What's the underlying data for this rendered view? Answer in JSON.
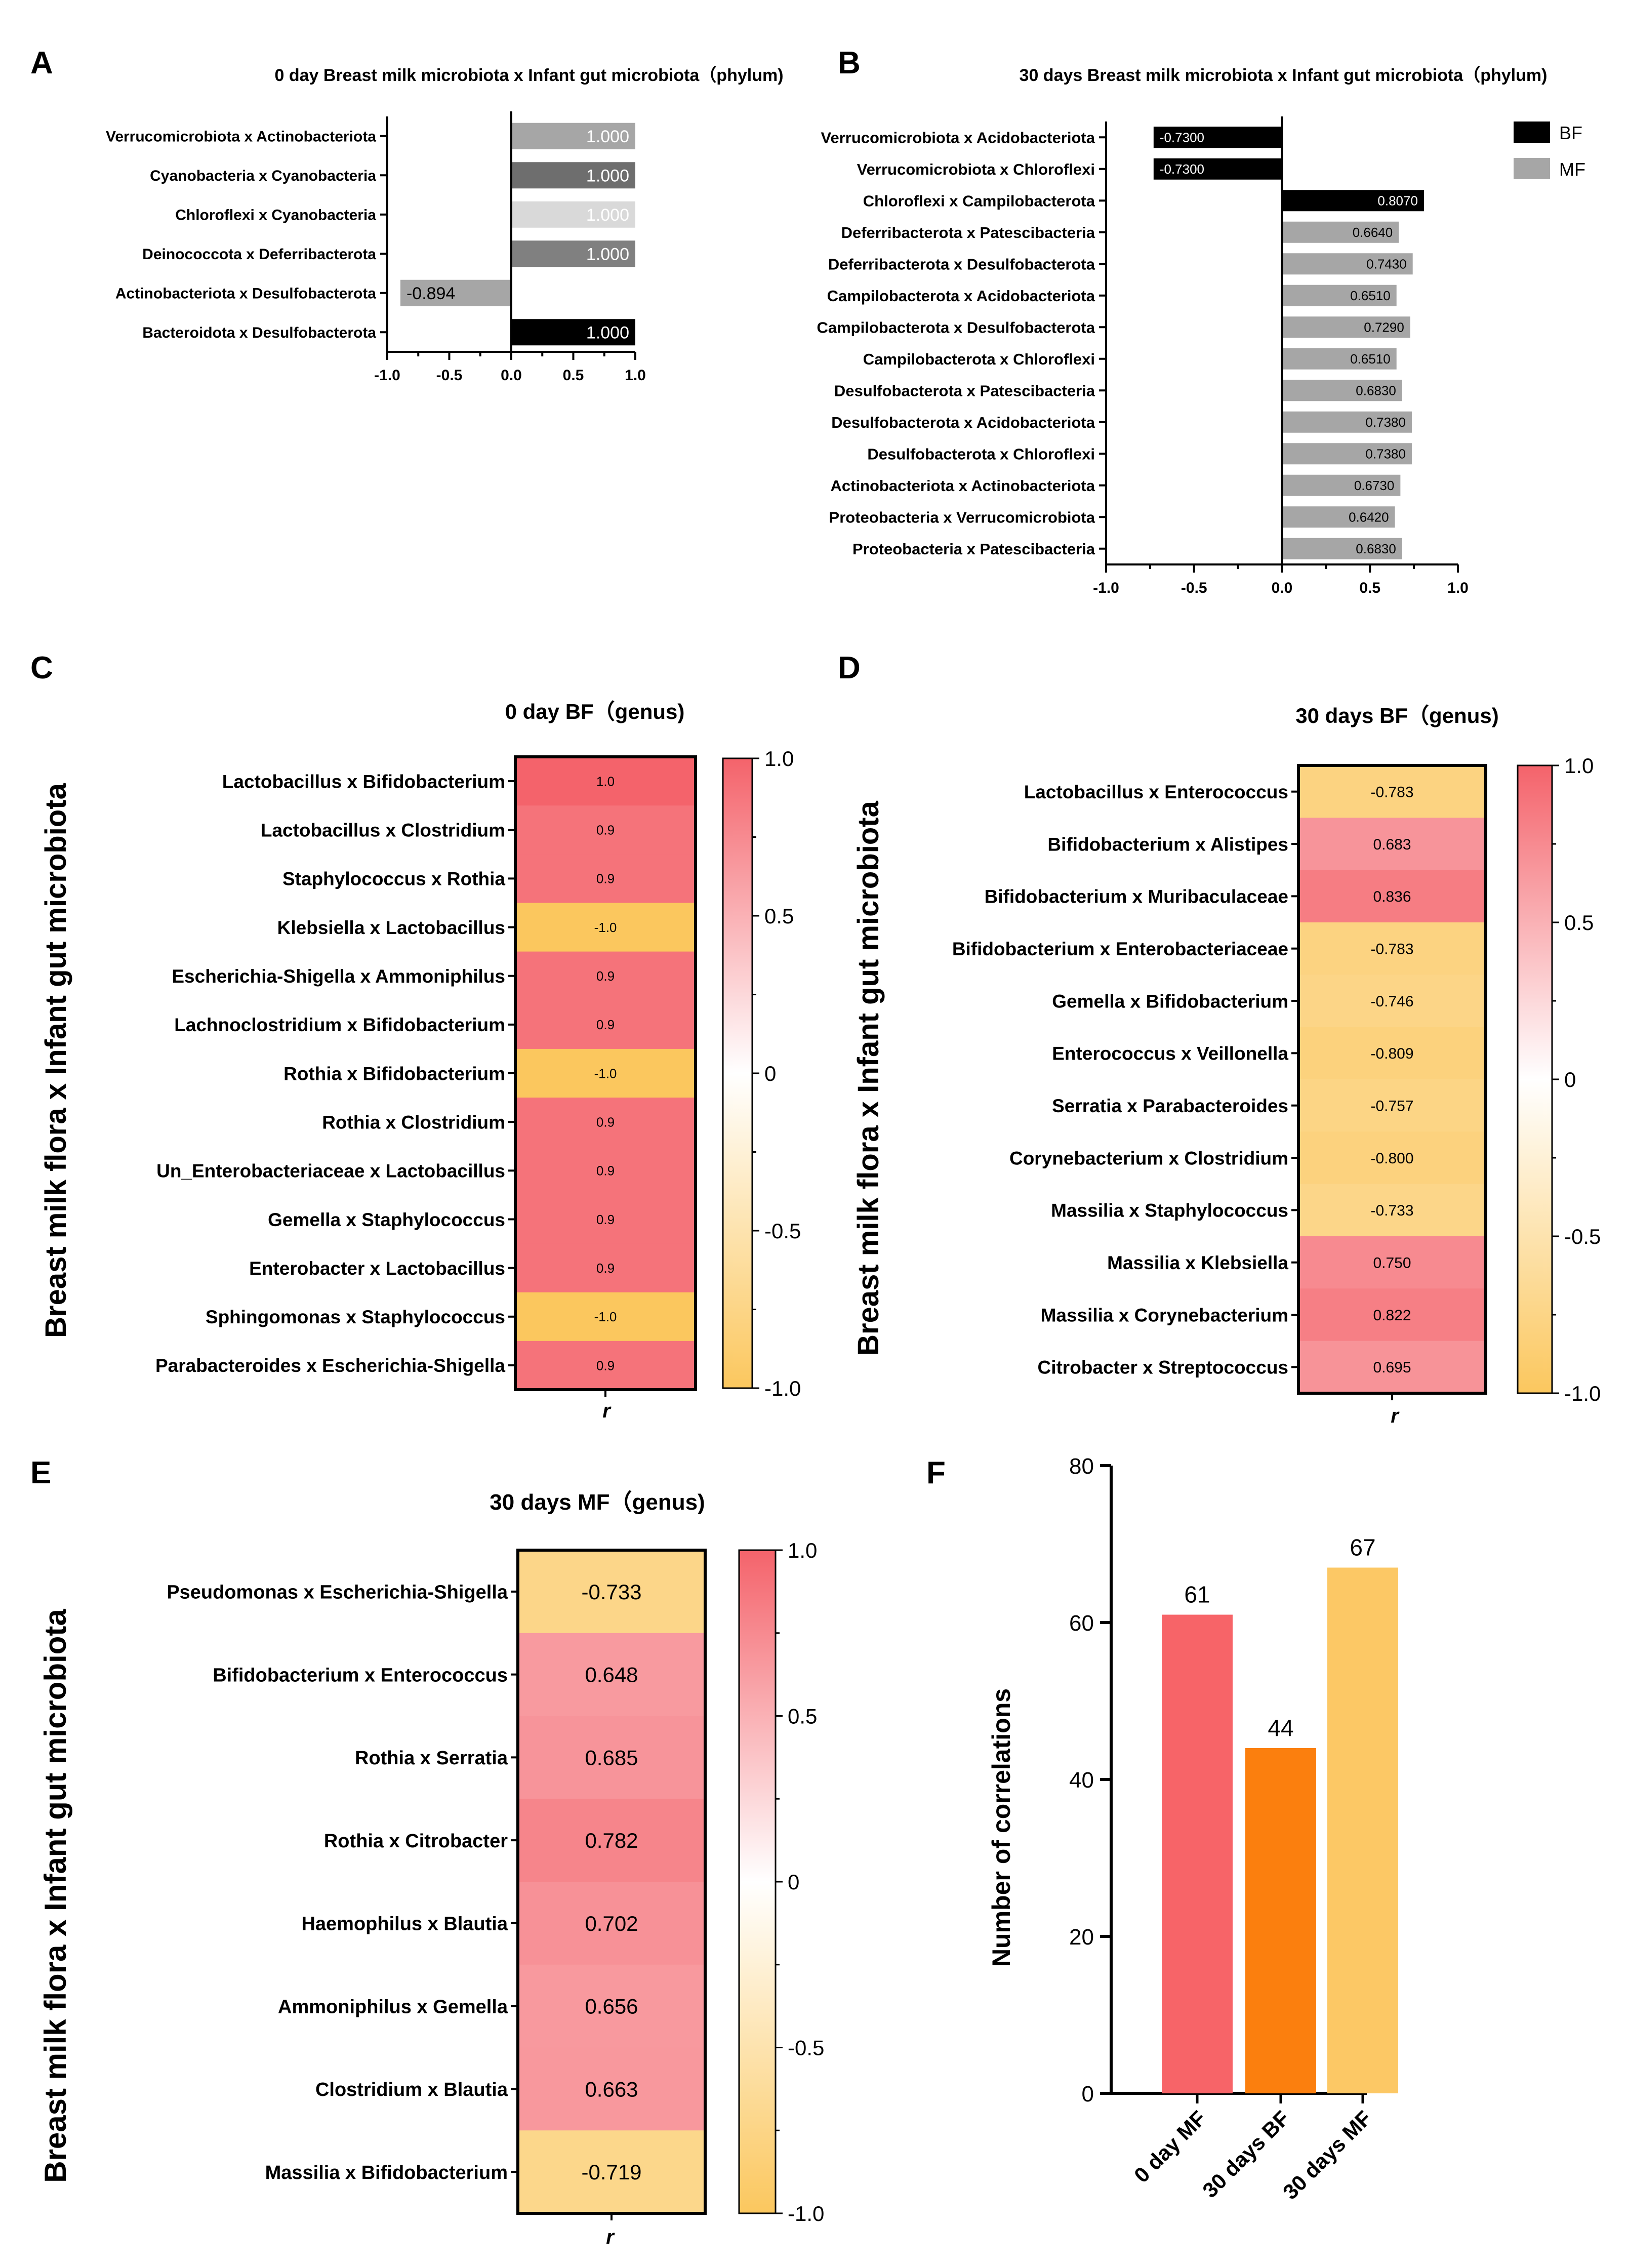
{
  "colors": {
    "bf": "#000000",
    "mf": "#a6a6a6",
    "heat_pos": "#f4636b",
    "heat_neg": "#fbc75e",
    "bar_f": [
      "#f76468",
      "#fb7f0e",
      "#fcc865"
    ]
  },
  "chart_data": [
    {
      "panel": "A",
      "type": "bar",
      "orientation": "horizontal",
      "title": "0 day Breast milk microbiota x Infant gut microbiota（phylum)",
      "xlim": [
        -1.0,
        1.0
      ],
      "ticks": [
        "-1.0",
        "-0.5",
        "0.0",
        "0.5",
        "1.0"
      ],
      "categories": [
        "Verrucomicrobiota x Actinobacteriota",
        "Cyanobacteria x Cyanobacteria",
        "Chloroflexi x Cyanobacteria",
        "Deinococcota x Deferribacterota",
        "Actinobacteriota x Desulfobacterota",
        "Bacteroidota x Desulfobacterota"
      ],
      "values": [
        1.0,
        1.0,
        1.0,
        1.0,
        -0.894,
        1.0
      ],
      "labels": [
        "1.000",
        "1.000",
        "1.000",
        "1.000",
        "-0.894",
        "1.000"
      ],
      "bar_colors": [
        "#a6a6a6",
        "#6e6e6e",
        "#d9d9d9",
        "#808080",
        "#a6a6a6",
        "#000000"
      ],
      "label_colors": [
        "#ffffff",
        "#ffffff",
        "#ffffff",
        "#ffffff",
        "#000000",
        "#ffffff"
      ]
    },
    {
      "panel": "B",
      "type": "bar",
      "orientation": "horizontal",
      "title": "30 days Breast milk microbiota x Infant gut microbiota（phylum)",
      "xlim": [
        -1.0,
        1.0
      ],
      "ticks": [
        "-1.0",
        "-0.5",
        "0.0",
        "0.5",
        "1.0"
      ],
      "legend": [
        "BF",
        "MF"
      ],
      "categories": [
        "Verrucomicrobiota x Acidobacteriota",
        "Verrucomicrobiota x Chloroflexi",
        "Chloroflexi x Campilobacterota",
        "Deferribacterota x Patescibacteria",
        "Deferribacterota x Desulfobacterota",
        "Campilobacterota x Acidobacteriota",
        "Campilobacterota x Desulfobacterota",
        "Campilobacterota x Chloroflexi",
        "Desulfobacterota x Patescibacteria",
        "Desulfobacterota x Acidobacteriota",
        "Desulfobacterota x Chloroflexi",
        "Actinobacteriota x Actinobacteriota",
        "Proteobacteria x Verrucomicrobiota",
        "Proteobacteria x Patescibacteria"
      ],
      "values": [
        -0.73,
        -0.73,
        0.807,
        0.664,
        0.743,
        0.651,
        0.729,
        0.651,
        0.683,
        0.738,
        0.738,
        0.673,
        0.642,
        0.683
      ],
      "labels": [
        "-0.7300",
        "-0.7300",
        "0.8070",
        "0.6640",
        "0.7430",
        "0.6510",
        "0.7290",
        "0.6510",
        "0.6830",
        "0.7380",
        "0.7380",
        "0.6730",
        "0.6420",
        "0.6830"
      ],
      "groups": [
        "BF",
        "BF",
        "BF",
        "MF",
        "MF",
        "MF",
        "MF",
        "MF",
        "MF",
        "MF",
        "MF",
        "MF",
        "MF",
        "MF"
      ]
    },
    {
      "panel": "C",
      "type": "heatmap",
      "title": "0 day BF（genus)",
      "ylabel": "Breast milk flora x Infant gut microbiota",
      "xlabel": "r",
      "colorbar_range": [
        -1.0,
        1.0
      ],
      "colorbar_ticks": [
        "1.0",
        "0.5",
        "0",
        "-0.5",
        "-1.0"
      ],
      "rows": [
        "Lactobacillus x Bifidobacterium",
        "Lactobacillus x Clostridium",
        "Staphylococcus x Rothia",
        "Klebsiella x Lactobacillus",
        "Escherichia-Shigella x Ammoniphilus",
        "Lachnoclostridium x Bifidobacterium",
        "Rothia x Bifidobacterium",
        "Rothia x Clostridium",
        "Un_Enterobacteriaceae x Lactobacillus",
        "Gemella x Staphylococcus",
        "Enterobacter x Lactobacillus",
        "Sphingomonas x Staphylococcus",
        "Parabacteroides x Escherichia-Shigella"
      ],
      "values": [
        1.0,
        0.9,
        0.9,
        -1.0,
        0.9,
        0.9,
        -1.0,
        0.9,
        0.9,
        0.9,
        0.9,
        -1.0,
        0.9
      ],
      "labels": [
        "1.0",
        "0.9",
        "0.9",
        "-1.0",
        "0.9",
        "0.9",
        "-1.0",
        "0.9",
        "0.9",
        "0.9",
        "0.9",
        "-1.0",
        "0.9"
      ]
    },
    {
      "panel": "D",
      "type": "heatmap",
      "title": "30 days BF（genus)",
      "ylabel": "Breast milk flora x Infant gut microbiota",
      "xlabel": "r",
      "colorbar_range": [
        -1.0,
        1.0
      ],
      "colorbar_ticks": [
        "1.0",
        "0.5",
        "0",
        "-0.5",
        "-1.0"
      ],
      "rows": [
        "Lactobacillus x Enterococcus",
        "Bifidobacterium x Alistipes",
        "Bifidobacterium x Muribaculaceae",
        "Bifidobacterium x Enterobacteriaceae",
        "Gemella x Bifidobacterium",
        "Enterococcus x Veillonella",
        "Serratia x Parabacteroides",
        "Corynebacterium x Clostridium",
        "Massilia x Staphylococcus",
        "Massilia x Klebsiella",
        "Massilia x Corynebacterium",
        "Citrobacter x Streptococcus"
      ],
      "values": [
        -0.783,
        0.683,
        0.836,
        -0.783,
        -0.746,
        -0.809,
        -0.757,
        -0.8,
        -0.733,
        0.75,
        0.822,
        0.695
      ],
      "labels": [
        "-0.783",
        "0.683",
        "0.836",
        "-0.783",
        "-0.746",
        "-0.809",
        "-0.757",
        "-0.800",
        "-0.733",
        "0.750",
        "0.822",
        "0.695"
      ]
    },
    {
      "panel": "E",
      "type": "heatmap",
      "title": "30 days MF（genus)",
      "ylabel": "Breast milk flora x Infant gut microbiota",
      "xlabel": "r",
      "colorbar_range": [
        -1.0,
        1.0
      ],
      "colorbar_ticks": [
        "1.0",
        "0.5",
        "0",
        "-0.5",
        "-1.0"
      ],
      "rows": [
        "Pseudomonas x Escherichia-Shigella",
        "Bifidobacterium x Enterococcus",
        "Rothia x Serratia",
        "Rothia x Citrobacter",
        "Haemophilus x Blautia",
        "Ammoniphilus x Gemella",
        "Clostridium x Blautia",
        "Massilia x Bifidobacterium"
      ],
      "values": [
        -0.733,
        0.648,
        0.685,
        0.782,
        0.702,
        0.656,
        0.663,
        -0.719
      ],
      "labels": [
        "-0.733",
        "0.648",
        "0.685",
        "0.782",
        "0.702",
        "0.656",
        "0.663",
        "-0.719"
      ]
    },
    {
      "panel": "F",
      "type": "bar",
      "ylabel": "Number of correlations",
      "ylim": [
        0,
        80
      ],
      "yticks": [
        "0",
        "20",
        "40",
        "60",
        "80"
      ],
      "categories": [
        "0 day MF",
        "30 days BF",
        "30 days MF"
      ],
      "values": [
        61,
        44,
        67
      ]
    }
  ]
}
